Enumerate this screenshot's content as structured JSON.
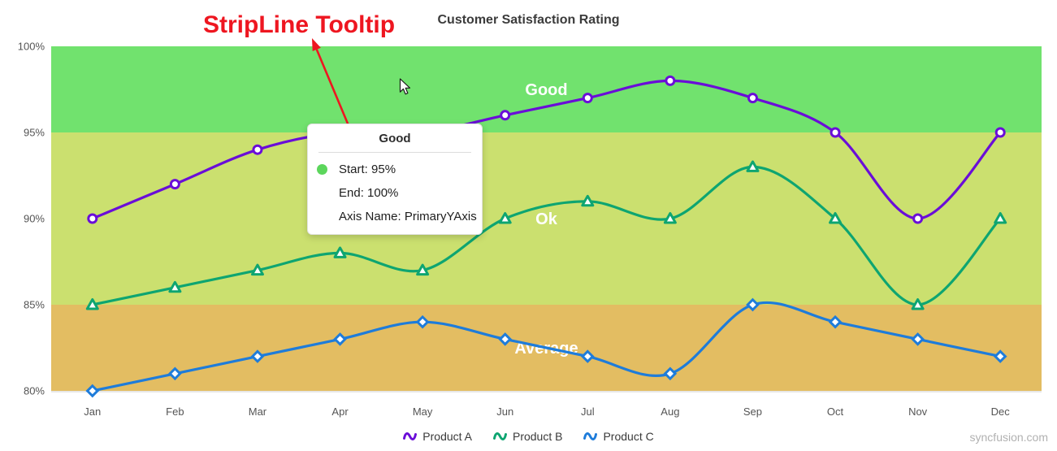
{
  "header": {
    "annotation_label": "StripLine Tooltip",
    "title": "Customer Satisfaction Rating"
  },
  "watermark": "syncfusion.com",
  "tooltip": {
    "title": "Good",
    "bullet_color": "#5cd65c",
    "rows": [
      {
        "bullet": true,
        "text": "Start: 95%"
      },
      {
        "bullet": false,
        "text": "End: 100%"
      },
      {
        "bullet": false,
        "text": "Axis Name: PrimaryYAxis"
      }
    ]
  },
  "colors": {
    "annotation_red": "#ee1620",
    "axis_label": "#545454",
    "title_text": "#3b3b3b",
    "strip_label_text": "#ffffff",
    "watermark_text": "#b1b1b1"
  },
  "chart_data": {
    "type": "line",
    "title": "Customer Satisfaction Rating",
    "xlabel": "",
    "ylabel": "",
    "categories": [
      "Jan",
      "Feb",
      "Mar",
      "Apr",
      "May",
      "Jun",
      "Jul",
      "Aug",
      "Sep",
      "Oct",
      "Nov",
      "Dec"
    ],
    "series": [
      {
        "name": "Product A",
        "color": "#6a0dd8",
        "marker": "circle",
        "values": [
          90,
          92,
          94,
          95,
          95,
          96,
          97,
          98,
          97,
          95,
          90,
          95
        ]
      },
      {
        "name": "Product B",
        "color": "#0ea571",
        "marker": "triangle",
        "values": [
          85,
          86,
          87,
          88,
          87,
          90,
          91,
          90,
          93,
          90,
          85,
          90
        ]
      },
      {
        "name": "Product C",
        "color": "#1e7cda",
        "marker": "diamond",
        "values": [
          80,
          81,
          82,
          83,
          84,
          83,
          82,
          81,
          85,
          84,
          83,
          82
        ]
      }
    ],
    "ylim": [
      80,
      100
    ],
    "yticks": [
      80,
      85,
      90,
      95,
      100
    ],
    "ytick_suffix": "%",
    "grid": false,
    "legend_position": "bottom",
    "striplines": [
      {
        "label": "Good",
        "start": 95,
        "end": 100,
        "color": "#71e26e"
      },
      {
        "label": "Ok",
        "start": 85,
        "end": 95,
        "color": "#cbe06f"
      },
      {
        "label": "Average",
        "start": 80,
        "end": 85,
        "color": "#e3bd62"
      }
    ]
  }
}
